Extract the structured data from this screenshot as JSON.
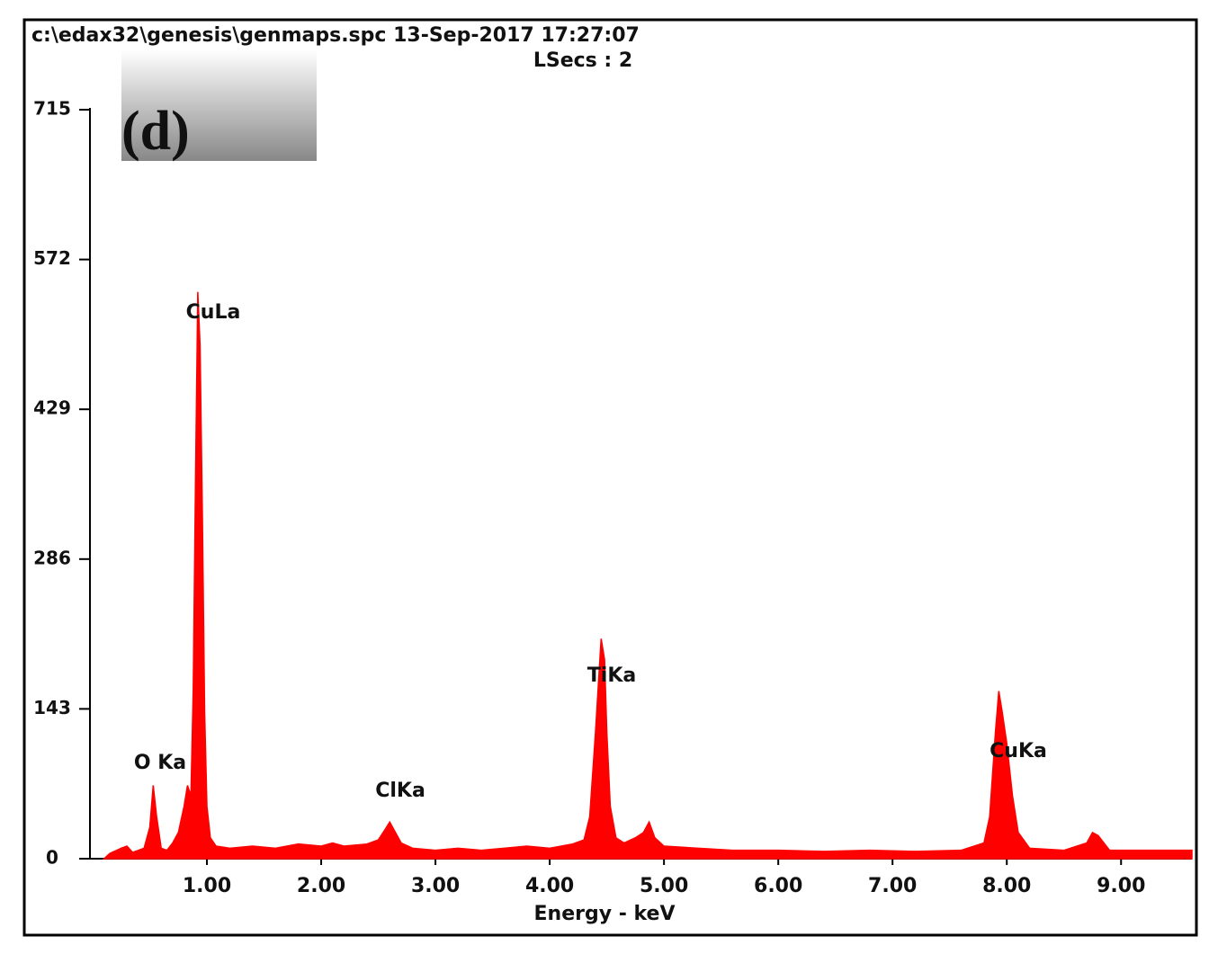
{
  "chart_data": {
    "type": "spectrum",
    "title": "c:\\edax32\\genesis\\genmaps.spc  13-Sep-2017 17:27:07",
    "subtitle": "LSecs : 2",
    "panel_label": "(d)",
    "x_label": "Energy - keV",
    "color": "#ff0000",
    "annotations": [
      "O Ka",
      "CuLa",
      "ClKa",
      "TiKa",
      "CuKa"
    ],
    "xlim": [
      0,
      9.62
    ],
    "ylim": [
      0,
      715
    ],
    "xticks": [
      {
        "value": 1,
        "label": "1.00"
      },
      {
        "value": 2,
        "label": "2.00"
      },
      {
        "value": 3,
        "label": "3.00"
      },
      {
        "value": 4,
        "label": "4.00"
      },
      {
        "value": 5,
        "label": "5.00"
      },
      {
        "value": 6,
        "label": "6.00"
      },
      {
        "value": 7,
        "label": "7.00"
      },
      {
        "value": 8,
        "label": "8.00"
      },
      {
        "value": 9,
        "label": "9.00"
      }
    ],
    "yticks": [
      0,
      143,
      286,
      429,
      572,
      715
    ],
    "x": [
      0.1,
      0.15,
      0.25,
      0.3,
      0.35,
      0.4,
      0.45,
      0.5,
      0.53,
      0.56,
      0.6,
      0.65,
      0.7,
      0.75,
      0.8,
      0.83,
      0.86,
      0.88,
      0.9,
      0.92,
      0.94,
      0.96,
      0.98,
      1.0,
      1.03,
      1.08,
      1.2,
      1.4,
      1.6,
      1.8,
      2.0,
      2.1,
      2.2,
      2.4,
      2.5,
      2.56,
      2.6,
      2.65,
      2.7,
      2.8,
      3.0,
      3.2,
      3.4,
      3.6,
      3.8,
      4.0,
      4.2,
      4.3,
      4.35,
      4.4,
      4.45,
      4.48,
      4.5,
      4.53,
      4.58,
      4.65,
      4.75,
      4.82,
      4.87,
      4.92,
      5.0,
      5.3,
      5.6,
      6.0,
      6.4,
      6.8,
      7.2,
      7.6,
      7.8,
      7.85,
      7.9,
      7.93,
      7.96,
      8.0,
      8.05,
      8.1,
      8.2,
      8.5,
      8.7,
      8.75,
      8.8,
      8.85,
      8.9,
      9.2,
      9.62
    ],
    "values": [
      0,
      5,
      10,
      12,
      6,
      8,
      10,
      30,
      70,
      40,
      10,
      8,
      15,
      25,
      50,
      70,
      60,
      160,
      360,
      541,
      490,
      330,
      140,
      50,
      20,
      12,
      10,
      12,
      10,
      14,
      12,
      15,
      12,
      14,
      18,
      28,
      35,
      25,
      15,
      10,
      8,
      10,
      8,
      10,
      12,
      10,
      14,
      18,
      40,
      120,
      210,
      190,
      120,
      50,
      20,
      15,
      20,
      25,
      35,
      20,
      12,
      10,
      8,
      8,
      7,
      8,
      7,
      8,
      15,
      40,
      120,
      160,
      140,
      110,
      60,
      25,
      10,
      8,
      15,
      25,
      22,
      15,
      8,
      8,
      8
    ]
  }
}
